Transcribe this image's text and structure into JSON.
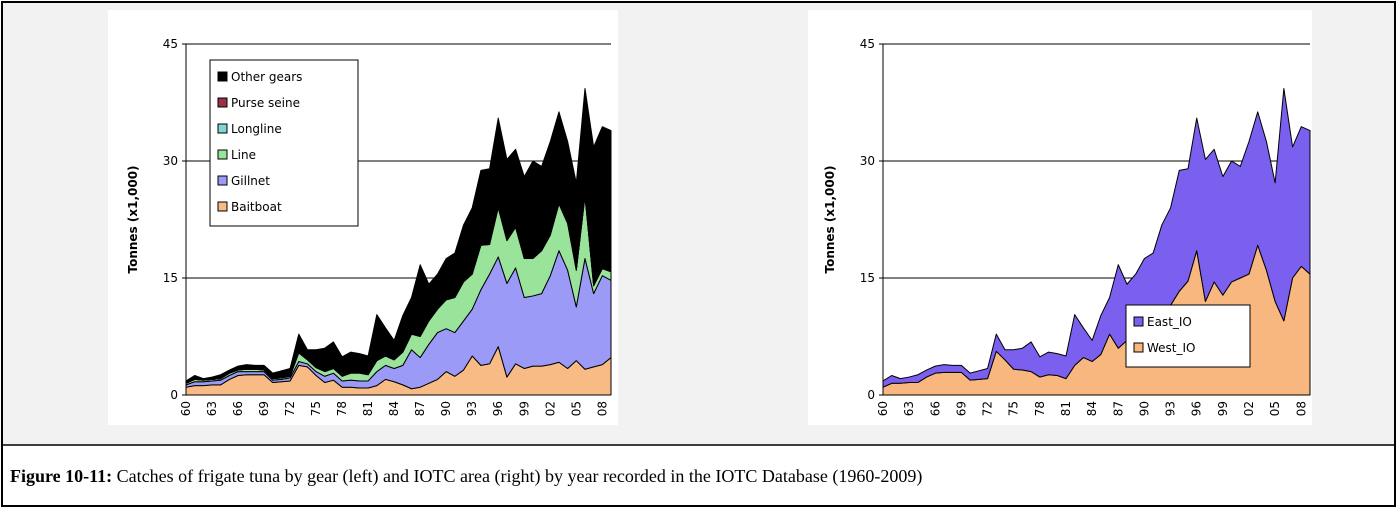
{
  "chart_data": [
    {
      "type": "area",
      "stacked": true,
      "ylabel": "Tonnes (x1,000)",
      "categories": [
        "60",
        null,
        null,
        "63",
        null,
        null,
        "66",
        null,
        null,
        "69",
        null,
        null,
        "72",
        null,
        null,
        "75",
        null,
        null,
        "78",
        null,
        null,
        "81",
        null,
        null,
        "84",
        null,
        null,
        "87",
        null,
        null,
        "90",
        null,
        null,
        "93",
        null,
        null,
        "96",
        null,
        null,
        "99",
        null,
        null,
        "02",
        null,
        null,
        "05",
        null,
        null,
        "08",
        null
      ],
      "ylim": [
        0,
        45
      ],
      "yticks": [
        0,
        15,
        30,
        45
      ],
      "grid": true,
      "legend": "upper left",
      "series": [
        {
          "name": "Baitboat",
          "color": "#f9bb85",
          "values": [
            1.0,
            1.2,
            1.2,
            1.3,
            1.3,
            2.0,
            2.5,
            2.6,
            2.6,
            2.6,
            1.6,
            1.7,
            1.8,
            3.8,
            3.6,
            2.5,
            1.6,
            1.9,
            1.0,
            1.0,
            0.9,
            0.9,
            1.2,
            2.0,
            1.7,
            1.3,
            0.8,
            1.0,
            1.5,
            2.0,
            3.0,
            2.4,
            3.2,
            5.0,
            3.8,
            4.0,
            6.2,
            2.3,
            4.0,
            3.4,
            3.7,
            3.7,
            3.9,
            4.2,
            3.4,
            4.4,
            3.3,
            3.6,
            3.9,
            4.8
          ]
        },
        {
          "name": "Gillnet",
          "color": "#9b9bf7",
          "values": [
            0.3,
            0.5,
            0.5,
            0.5,
            0.6,
            0.5,
            0.5,
            0.4,
            0.4,
            0.4,
            0.3,
            0.3,
            0.4,
            0.5,
            0.4,
            0.5,
            0.8,
            0.9,
            0.8,
            0.9,
            0.9,
            0.9,
            1.8,
            1.8,
            1.7,
            2.5,
            5.0,
            3.8,
            5.0,
            6.0,
            5.5,
            5.6,
            6.3,
            6.0,
            9.7,
            11.5,
            11.5,
            12.0,
            12.3,
            9.1,
            9.0,
            9.3,
            11.4,
            14.3,
            12.6,
            6.9,
            14.2,
            9.4,
            11.4,
            9.9
          ]
        },
        {
          "name": "Line",
          "color": "#99e39b",
          "values": [
            0.2,
            0.3,
            0.2,
            0.2,
            0.2,
            0.3,
            0.2,
            0.3,
            0.3,
            0.2,
            0.2,
            0.2,
            0.2,
            1.1,
            0.5,
            0.5,
            0.6,
            0.6,
            0.6,
            0.9,
            1.0,
            0.8,
            1.4,
            1.2,
            1.1,
            1.7,
            2.0,
            2.7,
            3.0,
            3.0,
            3.7,
            4.5,
            5.0,
            4.5,
            5.7,
            3.8,
            6.3,
            5.5,
            5.2,
            5.0,
            4.8,
            5.5,
            5.2,
            6.0,
            6.0,
            4.7,
            8.0,
            1.0,
            0.9,
            1.1
          ]
        },
        {
          "name": "Longline",
          "color": "#7fd6d6",
          "values": [
            0,
            0,
            0,
            0,
            0,
            0,
            0,
            0,
            0,
            0,
            0,
            0,
            0,
            0.1,
            0.1,
            0.1,
            0.1,
            0.1,
            0.1,
            0.1,
            0.1,
            0.1,
            0.1,
            0.1,
            0.1,
            0.1,
            0.1,
            0.1,
            0.1,
            0.1,
            0.1,
            0.1,
            0.1,
            0.1,
            0.1,
            0.1,
            0.1,
            0.1,
            0.1,
            0.1,
            0.1,
            0.1,
            0.1,
            0.1,
            0.1,
            0.1,
            0.1,
            0.1,
            0.1,
            0.1
          ]
        },
        {
          "name": "Purse seine",
          "color": "#993344",
          "values": [
            0,
            0,
            0,
            0,
            0,
            0,
            0,
            0,
            0,
            0,
            0,
            0,
            0,
            0,
            0,
            0,
            0,
            0,
            0,
            0,
            0,
            0,
            0,
            0,
            0,
            0.1,
            0.1,
            0.1,
            0.1,
            0.1,
            0.1,
            0.1,
            0.1,
            0.1,
            0.1,
            0.1,
            0.1,
            0.1,
            0.1,
            0.1,
            0.1,
            0.1,
            0.1,
            0.1,
            0.1,
            0.1,
            0.1,
            0.1,
            0.1,
            0.1
          ]
        },
        {
          "name": "Other gears",
          "color": "#000000",
          "values": [
            0.3,
            0.5,
            0.2,
            0.3,
            0.5,
            0.4,
            0.5,
            0.6,
            0.5,
            0.6,
            0.7,
            0.9,
            1.0,
            2.3,
            1.2,
            2.2,
            2.9,
            3.3,
            2.4,
            2.6,
            2.4,
            2.3,
            5.8,
            3.5,
            2.4,
            4.5,
            4.5,
            9.0,
            4.5,
            4.3,
            5.1,
            5.5,
            7.1,
            8.3,
            9.4,
            9.5,
            11.3,
            10.2,
            9.8,
            10.3,
            12.3,
            10.6,
            11.8,
            11.6,
            10.3,
            11.0,
            13.6,
            17.6,
            18.0,
            17.9
          ]
        }
      ]
    },
    {
      "type": "area",
      "stacked": true,
      "ylabel": "Tonnes (x1,000)",
      "categories": [
        "60",
        null,
        null,
        "63",
        null,
        null,
        "66",
        null,
        null,
        "69",
        null,
        null,
        "72",
        null,
        null,
        "75",
        null,
        null,
        "78",
        null,
        null,
        "81",
        null,
        null,
        "84",
        null,
        null,
        "87",
        null,
        null,
        "90",
        null,
        null,
        "93",
        null,
        null,
        "96",
        null,
        null,
        "99",
        null,
        null,
        "02",
        null,
        null,
        "05",
        null,
        null,
        "08",
        null
      ],
      "ylim": [
        0,
        45
      ],
      "yticks": [
        0,
        15,
        30,
        45
      ],
      "grid": true,
      "legend": "lower right",
      "series": [
        {
          "name": "West_IO",
          "color": "#f7b77e",
          "values": [
            1.0,
            1.5,
            1.5,
            1.6,
            1.6,
            2.3,
            2.8,
            2.9,
            2.9,
            2.9,
            1.9,
            2.0,
            2.1,
            5.6,
            4.5,
            3.3,
            3.2,
            3.0,
            2.3,
            2.6,
            2.5,
            2.1,
            3.8,
            4.8,
            4.3,
            5.2,
            7.8,
            6.0,
            7.0,
            8.8,
            10.0,
            9.0,
            11.0,
            11.5,
            13.3,
            14.6,
            18.5,
            12.0,
            14.5,
            12.8,
            14.5,
            15.0,
            15.5,
            19.2,
            16.0,
            12.0,
            9.5,
            15.0,
            16.5,
            15.5
          ]
        },
        {
          "name": "East_IO",
          "color": "#7b5fee",
          "values": [
            0.8,
            1.0,
            0.6,
            0.7,
            1.0,
            0.9,
            0.9,
            1.0,
            0.9,
            0.9,
            0.9,
            1.1,
            1.3,
            2.2,
            1.3,
            2.5,
            2.8,
            3.8,
            2.6,
            2.9,
            2.8,
            2.9,
            6.5,
            3.8,
            2.7,
            5.0,
            4.7,
            10.7,
            7.2,
            6.7,
            7.5,
            9.2,
            10.8,
            12.5,
            15.5,
            14.4,
            17.0,
            18.2,
            17.0,
            15.2,
            15.5,
            14.3,
            17.0,
            17.1,
            16.5,
            15.2,
            29.8,
            16.8,
            17.9,
            18.4
          ]
        }
      ]
    }
  ],
  "caption": {
    "label": "Figure 10-11:",
    "text": "Catches of frigate tuna by gear (left) and IOTC area (right) by year recorded in the IOTC Database (1960-2009)"
  }
}
